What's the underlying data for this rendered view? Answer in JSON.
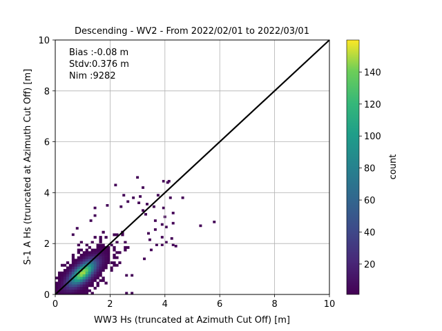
{
  "chart_data": {
    "type": "heatmap",
    "title": "Descending - WV2 - From 2022/02/01 to 2022/03/01",
    "xlabel": "WW3 Hs (truncated at Azimuth Cut Off) [m]",
    "ylabel": "S-1 A Hs (truncated at Azimuth Cut Off) [m]",
    "xlim": [
      0,
      10
    ],
    "ylim": [
      0,
      10
    ],
    "xticks": [
      "0",
      "2",
      "4",
      "6",
      "8",
      "10"
    ],
    "yticks": [
      "0",
      "2",
      "4",
      "6",
      "8",
      "10"
    ],
    "grid": true,
    "annotations": [
      "Bias :-0.08 m",
      "Stdv:0.376 m",
      "Nim :9282"
    ],
    "reference_line": {
      "label": "",
      "x": [
        0,
        10
      ],
      "y": [
        0,
        10
      ],
      "color": "#000000"
    },
    "colorbar": {
      "label": "count",
      "colormap": "viridis",
      "range": [
        1,
        160
      ],
      "ticks": [
        "20",
        "40",
        "60",
        "80",
        "100",
        "120",
        "140"
      ]
    },
    "density_bins": {
      "bin_width": 0.1,
      "center": [
        1.0,
        0.85
      ],
      "spread_major": 0.42,
      "spread_minor": 0.18,
      "peak_count": 150,
      "extent_x": [
        0.0,
        3.2
      ],
      "extent_y": [
        0.0,
        3.3
      ]
    },
    "outlier_points": [
      [
        2.15,
        4.25
      ],
      [
        2.8,
        3.75
      ],
      [
        3.0,
        3.55
      ],
      [
        3.15,
        3.25
      ],
      [
        3.25,
        3.1
      ],
      [
        2.95,
        4.55
      ],
      [
        3.9,
        4.4
      ],
      [
        4.05,
        4.35
      ],
      [
        4.1,
        4.4
      ],
      [
        3.7,
        3.85
      ],
      [
        4.15,
        3.75
      ],
      [
        3.55,
        3.4
      ],
      [
        3.9,
        3.35
      ],
      [
        4.25,
        3.15
      ],
      [
        3.6,
        2.85
      ],
      [
        4.25,
        2.75
      ],
      [
        3.85,
        2.7
      ],
      [
        4.0,
        2.6
      ],
      [
        3.85,
        2.2
      ],
      [
        3.65,
        1.9
      ],
      [
        3.85,
        1.9
      ],
      [
        4.25,
        1.9
      ],
      [
        4.35,
        1.85
      ],
      [
        4.2,
        2.15
      ],
      [
        3.45,
        1.7
      ],
      [
        3.2,
        1.35
      ],
      [
        2.75,
        0.7
      ],
      [
        2.55,
        0.7
      ],
      [
        2.55,
        0.0
      ],
      [
        2.75,
        0.0
      ],
      [
        5.25,
        2.65
      ],
      [
        5.75,
        2.8
      ],
      [
        4.6,
        3.75
      ],
      [
        3.35,
        2.35
      ],
      [
        3.4,
        2.1
      ],
      [
        2.35,
        3.4
      ],
      [
        1.4,
        3.35
      ],
      [
        1.4,
        3.05
      ],
      [
        1.85,
        3.45
      ],
      [
        2.6,
        3.6
      ],
      [
        3.05,
        3.8
      ],
      [
        0.75,
        2.55
      ],
      [
        0.6,
        2.3
      ],
      [
        1.25,
        2.85
      ],
      [
        3.15,
        4.15
      ],
      [
        2.45,
        3.85
      ],
      [
        3.6,
        2.5
      ],
      [
        3.3,
        3.5
      ],
      [
        3.95,
        3.0
      ],
      [
        4.0,
        2.0
      ]
    ]
  }
}
